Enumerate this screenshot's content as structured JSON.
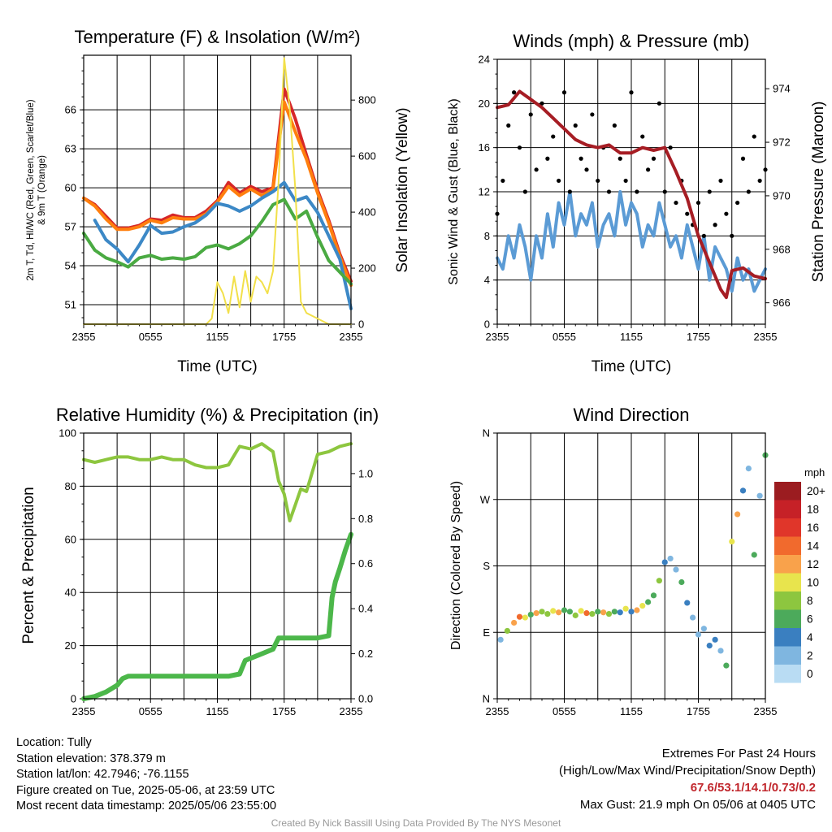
{
  "footer": {
    "location": "Location: Tully",
    "elevation": "Station elevation: 378.379 m",
    "latlon": "Station lat/lon: 42.7946; -76.1155",
    "created": "Figure created on Tue, 2025-05-06, at 23:59 UTC",
    "recent": "Most recent data timestamp: 2025/05/06 23:55:00",
    "extremes_title": "Extremes For Past 24 Hours",
    "extremes_legend": "(High/Low/Max Wind/Precipitation/Snow Depth)",
    "extremes_values": "67.6/53.1/14.1/0.73/0.2",
    "max_gust": "Max Gust: 21.9 mph On 05/06 at 0405 UTC",
    "credit": "Created By Nick Bassill Using Data Provided By The NYS Mesonet"
  },
  "chart_data": [
    {
      "type": "line",
      "title": "Temperature (F) & Insolation (W/m²)",
      "xlabel": "Time (UTC)",
      "ylabel": "2m T, Td, HI/WC (Red, Green, Scarlet/Blue) & 9m T (Orange)",
      "y2label": "Solar Insolation (Yellow)",
      "x_ticks": [
        "2355",
        "0555",
        "1155",
        "1755",
        "2355"
      ],
      "x_hours": [
        0,
        24
      ],
      "ylim": [
        49.5,
        70.2
      ],
      "y_ticks": [
        51,
        54,
        57,
        60,
        63,
        66
      ],
      "y2lim": [
        0,
        960
      ],
      "y2_ticks": [
        0,
        200,
        400,
        600,
        800
      ],
      "series": [
        {
          "color": "#d62728",
          "axis": "y",
          "x": [
            0,
            1,
            2,
            3,
            4,
            5,
            6,
            7,
            8,
            9,
            10,
            11,
            12,
            13,
            14,
            15,
            16,
            17,
            18,
            19,
            20,
            21,
            22,
            23,
            24
          ],
          "values": [
            59.2,
            58.7,
            57.8,
            56.9,
            56.9,
            57.1,
            57.6,
            57.5,
            57.9,
            57.7,
            57.7,
            58.2,
            59.0,
            60.4,
            59.6,
            60.1,
            59.7,
            60.0,
            67.6,
            65.3,
            62.5,
            59.8,
            57.5,
            54.9,
            52.8
          ]
        },
        {
          "color": "#ff7f0e",
          "axis": "y",
          "x": [
            0,
            1,
            2,
            3,
            4,
            5,
            6,
            7,
            8,
            9,
            10,
            11,
            12,
            13,
            14,
            15,
            16,
            17,
            18,
            19,
            20,
            21,
            22,
            23,
            24
          ],
          "values": [
            59.2,
            58.6,
            57.6,
            56.8,
            56.8,
            57.0,
            57.5,
            57.3,
            57.7,
            57.6,
            57.6,
            58.0,
            58.9,
            60.1,
            59.4,
            59.9,
            59.4,
            59.9,
            66.6,
            64.3,
            62.2,
            59.6,
            57.3,
            54.7,
            52.5
          ]
        },
        {
          "color": "#3c88c6",
          "axis": "y",
          "x": [
            1,
            2,
            3,
            4,
            5,
            6,
            7,
            8,
            9,
            10,
            11,
            12,
            13,
            14,
            15,
            16,
            17,
            18,
            19,
            20,
            21,
            22,
            23,
            24
          ],
          "values": [
            57.5,
            56.0,
            55.3,
            54.3,
            55.6,
            57.1,
            56.5,
            56.6,
            57.0,
            57.3,
            57.9,
            58.8,
            58.6,
            58.2,
            58.6,
            59.2,
            59.7,
            60.4,
            59.0,
            59.3,
            58.1,
            56.3,
            54.5,
            50.7
          ]
        },
        {
          "color": "#4aaa42",
          "axis": "y",
          "x": [
            0,
            1,
            2,
            3,
            4,
            5,
            6,
            7,
            8,
            9,
            10,
            11,
            12,
            13,
            14,
            15,
            16,
            17,
            18,
            19,
            20,
            21,
            22,
            23,
            24
          ],
          "values": [
            56.5,
            55.2,
            54.6,
            54.3,
            53.9,
            54.6,
            54.8,
            54.5,
            54.6,
            54.5,
            54.7,
            55.4,
            55.6,
            55.3,
            55.7,
            56.3,
            57.4,
            58.7,
            59.1,
            57.6,
            58.2,
            56.2,
            54.4,
            53.5,
            52.6
          ]
        },
        {
          "color": "#f2e04a",
          "axis": "y2",
          "x": [
            0,
            3,
            6,
            9,
            10,
            11,
            11.5,
            12,
            12.5,
            13,
            13.5,
            14,
            14.5,
            15,
            15.5,
            16,
            16.5,
            17,
            17.5,
            18,
            18.5,
            19,
            19.5,
            20,
            21,
            22,
            23,
            24
          ],
          "values": [
            0,
            0,
            0,
            0,
            0,
            0,
            20,
            150,
            110,
            40,
            170,
            60,
            190,
            80,
            170,
            150,
            110,
            190,
            510,
            950,
            770,
            480,
            80,
            40,
            20,
            0,
            0,
            0
          ]
        }
      ]
    },
    {
      "type": "scatter",
      "title": "Winds (mph) & Pressure (mb)",
      "xlabel": "Time (UTC)",
      "ylabel": "Sonic Wind & Gust (Blue, Black)",
      "y2label": "Station Pressure (Maroon)",
      "x_ticks": [
        "2355",
        "0555",
        "1155",
        "1755",
        "2355"
      ],
      "x_hours": [
        0,
        24
      ],
      "ylim": [
        0,
        24
      ],
      "y_ticks": [
        0,
        4,
        8,
        12,
        16,
        20,
        24
      ],
      "y2lim": [
        965.2,
        975.1
      ],
      "y2_ticks": [
        966,
        968,
        970,
        972,
        974
      ],
      "series": [
        {
          "color": "#5b9bd5",
          "axis": "y",
          "x": [
            0,
            0.5,
            1,
            1.5,
            2,
            2.5,
            3,
            3.5,
            4,
            4.5,
            5,
            5.5,
            6,
            6.5,
            7,
            7.5,
            8,
            8.5,
            9,
            9.5,
            10,
            10.5,
            11,
            11.5,
            12,
            12.5,
            13,
            13.5,
            14,
            14.5,
            15,
            15.5,
            16,
            16.5,
            17,
            17.5,
            18,
            18.5,
            19,
            19.5,
            20,
            20.5,
            21,
            21.5,
            22,
            22.5,
            23,
            23.5,
            24
          ],
          "values": [
            6,
            5,
            8,
            6,
            9,
            7,
            4,
            8,
            6,
            10,
            7,
            11,
            9,
            12,
            8,
            10,
            9,
            11,
            7,
            9,
            10,
            8,
            12,
            9,
            11,
            10,
            7,
            9,
            8,
            11,
            9,
            7,
            8,
            6,
            9,
            7,
            5,
            8,
            4,
            7,
            6,
            5,
            3,
            6,
            4,
            5,
            3,
            4,
            5
          ]
        },
        {
          "color": "#000000",
          "axis": "y",
          "x": [
            0,
            0.5,
            1,
            1.5,
            2,
            2.5,
            3,
            3.5,
            4,
            4.5,
            5,
            5.5,
            6,
            6.5,
            7,
            7.5,
            8,
            8.5,
            9,
            9.5,
            10,
            10.5,
            11,
            11.5,
            12,
            12.5,
            13,
            13.5,
            14,
            14.5,
            15,
            15.5,
            16,
            16.5,
            17,
            17.5,
            18,
            18.5,
            19,
            19.5,
            20,
            20.5,
            21,
            21.5,
            22,
            22.5,
            23,
            23.5,
            24
          ],
          "values": [
            10,
            13,
            18,
            21,
            16,
            12,
            19,
            14,
            20,
            15,
            17,
            13,
            21,
            12,
            18,
            15,
            14,
            19,
            13,
            16,
            12,
            18,
            15,
            13,
            21,
            12,
            17,
            14,
            15,
            20,
            12,
            16,
            11,
            13,
            10,
            9,
            11,
            8,
            12,
            9,
            13,
            10,
            8,
            11,
            15,
            12,
            17,
            13,
            14
          ]
        },
        {
          "color": "#a61d24",
          "axis": "y2",
          "x": [
            0,
            1,
            2,
            3,
            4,
            5,
            6,
            7,
            8,
            9,
            10,
            11,
            12,
            13,
            14,
            15,
            16,
            17,
            17.5,
            18,
            19,
            20,
            20.5,
            21,
            22,
            23,
            24
          ],
          "values": [
            973.3,
            973.4,
            973.9,
            973.6,
            973.3,
            972.9,
            972.5,
            972.1,
            971.9,
            971.8,
            971.9,
            971.6,
            971.6,
            971.8,
            971.7,
            971.8,
            970.9,
            969.9,
            969.2,
            968.5,
            967.5,
            966.5,
            966.2,
            967.2,
            967.3,
            967.0,
            966.9
          ]
        }
      ]
    },
    {
      "type": "line",
      "title": "Relative Humidity (%) & Precipitation (in)",
      "xlabel": "",
      "ylabel": "Percent & Precipitation",
      "x_ticks": [
        "2355",
        "0555",
        "1155",
        "1755",
        "2355"
      ],
      "x_hours": [
        0,
        24
      ],
      "ylim": [
        0,
        100
      ],
      "y_ticks": [
        0,
        20,
        40,
        60,
        80,
        100
      ],
      "y2lim": [
        0,
        1.18
      ],
      "y2_ticks": [
        "0.0",
        "0.2",
        "0.4",
        "0.6",
        "0.8",
        "1.0"
      ],
      "series": [
        {
          "color": "#8dc63f",
          "axis": "y",
          "x": [
            0,
            1,
            2,
            3,
            4,
            5,
            6,
            7,
            8,
            9,
            10,
            11,
            12,
            13,
            14,
            15,
            16,
            17,
            17.5,
            18,
            18.5,
            19,
            19.5,
            20,
            21,
            22,
            23,
            24
          ],
          "values": [
            90,
            89,
            90,
            91,
            91,
            90,
            90,
            91,
            90,
            90,
            88,
            87,
            87,
            88,
            95,
            94,
            96,
            93,
            82,
            77,
            67,
            73,
            79,
            78,
            92,
            93,
            95,
            96
          ]
        },
        {
          "color": "#4cb74a",
          "axis": "y2",
          "x": [
            0,
            1,
            2,
            3,
            3.5,
            4,
            5,
            6,
            7,
            8,
            9,
            10,
            11,
            12,
            13,
            14,
            14.5,
            15,
            16,
            17,
            17.5,
            18,
            19,
            20,
            21,
            22,
            22.3,
            22.6,
            23,
            23.5,
            24
          ],
          "values": [
            0,
            0.01,
            0.03,
            0.06,
            0.09,
            0.1,
            0.1,
            0.1,
            0.1,
            0.1,
            0.1,
            0.1,
            0.1,
            0.1,
            0.1,
            0.11,
            0.17,
            0.18,
            0.2,
            0.22,
            0.27,
            0.27,
            0.27,
            0.27,
            0.27,
            0.28,
            0.45,
            0.52,
            0.58,
            0.66,
            0.73
          ]
        }
      ]
    },
    {
      "type": "scatter",
      "title": "Wind Direction",
      "xlabel": "",
      "ylabel": "Direction (Colored By Speed)",
      "x_ticks": [
        "2355",
        "0555",
        "1155",
        "1755",
        "2355"
      ],
      "x_hours": [
        0,
        24
      ],
      "ylim": [
        0,
        360
      ],
      "y_ticks": [
        "N",
        "E",
        "S",
        "W",
        "N"
      ],
      "colorbar": {
        "title": "mph",
        "labels": [
          "20+",
          "18",
          "16",
          "14",
          "12",
          "10",
          "8",
          "6",
          "4",
          "2",
          "0"
        ],
        "colors": [
          "#9b1c20",
          "#c62127",
          "#e0362a",
          "#f16a2d",
          "#f9a24b",
          "#e8e44d",
          "#8dc63f",
          "#4caa5b",
          "#3a7fc0",
          "#7fb6e0",
          "#b9dcf3"
        ]
      },
      "points": {
        "x": [
          0.3,
          0.9,
          1.5,
          2,
          2.5,
          3,
          3.5,
          4,
          4.5,
          5,
          5.5,
          6,
          6.5,
          7,
          7.5,
          8,
          8.5,
          9,
          9.5,
          10,
          10.5,
          11,
          11.5,
          12,
          12.5,
          13,
          13.5,
          14,
          14.5,
          15,
          15.5,
          16,
          16.5,
          17,
          17.5,
          18,
          18.5,
          19,
          19.5,
          20,
          20.5,
          21,
          21.5,
          22,
          22.5,
          23,
          23.5,
          24
        ],
        "values": [
          80,
          92,
          103,
          111,
          110,
          114,
          116,
          118,
          115,
          119,
          117,
          120,
          118,
          113,
          119,
          116,
          115,
          118,
          117,
          115,
          118,
          117,
          122,
          118,
          120,
          126,
          131,
          140,
          160,
          185,
          190,
          175,
          158,
          130,
          110,
          87,
          95,
          72,
          80,
          65,
          45,
          213,
          250,
          282,
          312,
          195,
          275,
          330
        ],
        "speeds": [
          3,
          8,
          12,
          14,
          10,
          6,
          13,
          8,
          9,
          11,
          12,
          6,
          7,
          9,
          10,
          14,
          8,
          6,
          12,
          9,
          7,
          5,
          11,
          4,
          12,
          10,
          7,
          6,
          9,
          5,
          3,
          2,
          6,
          4,
          3,
          2,
          3,
          5,
          4,
          2,
          6,
          11,
          12,
          4,
          3,
          6,
          2,
          7
        ]
      }
    }
  ]
}
